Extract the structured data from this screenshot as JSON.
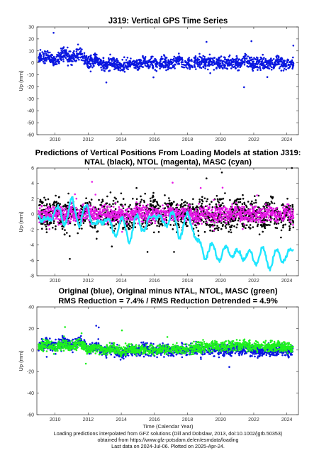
{
  "chart_data": [
    {
      "type": "scatter",
      "title": "J319: Vertical GPS Time Series",
      "xlabel": "",
      "ylabel": "Up (mm)",
      "xlim": [
        2008.9,
        2024.7
      ],
      "ylim": [
        -60,
        30
      ],
      "xticks": [
        2010,
        2012,
        2014,
        2016,
        2018,
        2020,
        2022,
        2024
      ],
      "yticks": [
        30,
        20,
        10,
        0,
        -10,
        -20,
        -30,
        -40,
        -50,
        -60
      ],
      "grid": false,
      "series": [
        {
          "color": "#0a17e0",
          "x": [
            2009.0,
            2009.5,
            2010.0,
            2010.5,
            2011.0,
            2011.5,
            2012.0,
            2012.5,
            2013.0,
            2013.5,
            2014.0,
            2014.5,
            2015.0,
            2015.5,
            2016.0,
            2016.5,
            2017.0,
            2017.5,
            2018.0,
            2018.5,
            2019.0,
            2019.5,
            2020.0,
            2020.5,
            2021.0,
            2021.5,
            2022.0,
            2022.5,
            2023.0,
            2023.5,
            2024.0,
            2024.4
          ],
          "y": [
            4,
            6,
            2,
            8,
            3,
            9,
            0,
            3,
            -2,
            1,
            -4,
            0,
            -1,
            1,
            0,
            0,
            -1,
            2,
            -1,
            1,
            0,
            1,
            -1,
            1,
            0,
            2,
            -1,
            0,
            -1,
            1,
            -2,
            0
          ],
          "spread": 7
        }
      ]
    },
    {
      "type": "scatter",
      "title": "Predictions of Vertical Positions From Loading Models at station J319:",
      "subtitle": "NTAL (black), NTOL (magenta), MASC (cyan)",
      "xlabel": "",
      "ylabel": "Up (mm)",
      "xlim": [
        2008.9,
        2024.7
      ],
      "ylim": [
        -8,
        6
      ],
      "xticks": [
        2010,
        2012,
        2014,
        2016,
        2018,
        2020,
        2022,
        2024
      ],
      "yticks": [
        6,
        4,
        2,
        0,
        -2,
        -4,
        -6,
        -8
      ],
      "grid": false,
      "series": [
        {
          "name": "NTAL",
          "color": "#000000",
          "x": [
            2009.0,
            2009.5,
            2010.0,
            2010.5,
            2011.0,
            2011.5,
            2012.0,
            2012.5,
            2013.0,
            2013.5,
            2014.0,
            2014.5,
            2015.0,
            2015.5,
            2016.0,
            2016.5,
            2017.0,
            2017.5,
            2018.0,
            2018.5,
            2019.0,
            2019.5,
            2020.0,
            2020.5,
            2021.0,
            2021.5,
            2022.0,
            2022.5,
            2023.0,
            2023.5,
            2024.0,
            2024.4
          ],
          "y": [
            0.5,
            -0.5,
            0.5,
            -0.5,
            0.5,
            -0.5,
            0.5,
            -0.5,
            0.5,
            -0.5,
            0.5,
            -0.5,
            0.5,
            -0.5,
            0.5,
            -0.5,
            0.5,
            -0.5,
            0.5,
            -0.5,
            0.5,
            -0.5,
            0.5,
            -0.5,
            0.5,
            -0.5,
            0.5,
            -0.5,
            0.5,
            -0.5,
            0.5,
            -0.5
          ],
          "spread": 2.6
        },
        {
          "name": "NTOL",
          "color": "#e619e6",
          "x": [
            2009.0,
            2009.5,
            2010.0,
            2010.5,
            2011.0,
            2011.5,
            2012.0,
            2012.5,
            2013.0,
            2013.5,
            2014.0,
            2014.5,
            2015.0,
            2015.5,
            2016.0,
            2016.5,
            2017.0,
            2017.5,
            2018.0,
            2018.5,
            2019.0,
            2019.5,
            2020.0,
            2020.5,
            2021.0,
            2021.5,
            2022.0,
            2022.5,
            2023.0,
            2023.5,
            2024.0,
            2024.4
          ],
          "y": [
            0.2,
            -0.2,
            0.2,
            -0.2,
            0.2,
            -0.2,
            0.2,
            -0.2,
            0.2,
            -0.2,
            0.2,
            -0.2,
            0.2,
            -0.2,
            0.2,
            -0.2,
            0.2,
            -0.2,
            0.2,
            -0.2,
            0.2,
            -0.2,
            0.2,
            -0.2,
            0.2,
            -0.2,
            0.2,
            -0.2,
            0.2,
            -0.2,
            0.2,
            -0.2
          ],
          "spread": 1.4
        },
        {
          "name": "MASC",
          "color": "#1fe6ff",
          "x": [
            2009.0,
            2009.5,
            2010.0,
            2010.5,
            2011.0,
            2011.5,
            2012.0,
            2012.5,
            2013.0,
            2013.5,
            2014.0,
            2014.5,
            2015.0,
            2015.5,
            2016.0,
            2016.5,
            2017.0,
            2017.5,
            2018.0,
            2018.3,
            2018.6,
            2019.0,
            2019.5,
            2020.0,
            2020.5,
            2021.0,
            2021.5,
            2022.0,
            2022.5,
            2023.0,
            2023.5,
            2024.0,
            2024.4
          ],
          "y": [
            0.5,
            -1.5,
            1.0,
            -1.0,
            1.5,
            -1.0,
            1.0,
            -2.0,
            0.0,
            -2.5,
            -1.0,
            -3.0,
            -0.5,
            -2.0,
            0.5,
            -1.5,
            0.0,
            -2.5,
            -0.5,
            -1.0,
            -4.0,
            -5.0,
            -4.5,
            -5.5,
            -4.5,
            -5.5,
            -5.0,
            -6.0,
            -5.0,
            -6.5,
            -5.0,
            -6.0,
            -4.0
          ]
        }
      ]
    },
    {
      "type": "scatter",
      "title": "Original (blue), Original minus NTAL, NTOL, MASC (green)",
      "subtitle": "RMS Reduction = 7.4% / RMS Reduction Detrended = 4.9%",
      "xlabel": "Time (Calendar Year)",
      "ylabel": "Up (mm)",
      "xlim": [
        2008.9,
        2024.7
      ],
      "ylim": [
        -60,
        40
      ],
      "xticks": [
        2010,
        2012,
        2014,
        2016,
        2018,
        2020,
        2022,
        2024
      ],
      "yticks": [
        40,
        20,
        0,
        -20,
        -40,
        -60
      ],
      "grid": false,
      "series": [
        {
          "name": "Original",
          "color": "#0a17e0",
          "x": [
            2009.0,
            2009.5,
            2010.0,
            2010.5,
            2011.0,
            2011.5,
            2012.0,
            2012.5,
            2013.0,
            2013.5,
            2014.0,
            2014.5,
            2015.0,
            2015.5,
            2016.0,
            2016.5,
            2017.0,
            2017.5,
            2018.0,
            2018.5,
            2019.0,
            2019.5,
            2020.0,
            2020.5,
            2021.0,
            2021.5,
            2022.0,
            2022.5,
            2023.0,
            2023.5,
            2024.0,
            2024.4
          ],
          "y": [
            4,
            6,
            2,
            8,
            3,
            9,
            0,
            3,
            -2,
            1,
            -4,
            0,
            -1,
            1,
            0,
            0,
            -1,
            2,
            -1,
            1,
            0,
            1,
            -1,
            1,
            0,
            2,
            -1,
            0,
            -1,
            1,
            -2,
            0
          ],
          "spread": 7
        },
        {
          "name": "Original minus NTAL, NTOL, MASC",
          "color": "#1ef01e",
          "x": [
            2009.0,
            2009.5,
            2010.0,
            2010.5,
            2011.0,
            2011.5,
            2012.0,
            2012.5,
            2013.0,
            2013.5,
            2014.0,
            2014.5,
            2015.0,
            2015.5,
            2016.0,
            2016.5,
            2017.0,
            2017.5,
            2018.0,
            2018.5,
            2019.0,
            2019.5,
            2020.0,
            2020.5,
            2021.0,
            2021.5,
            2022.0,
            2022.5,
            2023.0,
            2023.5,
            2024.0,
            2024.4
          ],
          "y": [
            3,
            5,
            2,
            6,
            2,
            7,
            0,
            3,
            -1,
            2,
            -2,
            1,
            0,
            1,
            0,
            1,
            0,
            2,
            0,
            2,
            3,
            4,
            3,
            4,
            4,
            5,
            3,
            4,
            3,
            4,
            2,
            3
          ],
          "spread": 6
        }
      ]
    }
  ],
  "footer": {
    "line1": "Loading predictions interpolated from GFZ solutions (Dill and Dobslaw, 2013, doi:10.1002/jgrb.50353)",
    "line2": "obtained from https://www.gfz-potsdam.de/en/esmdata/loading",
    "line3": "Last data on 2024-Jul-06. Plotted on 2025-Apr-24."
  }
}
